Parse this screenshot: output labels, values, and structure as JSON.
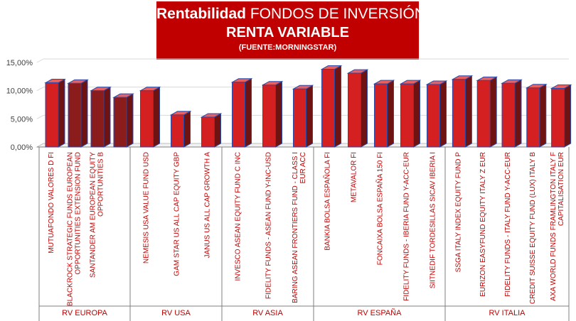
{
  "title": {
    "bold_part": "Rentabilidad",
    "rest": "FONDOS DE INVERSIÓN",
    "line2": "RENTA VARIABLE",
    "source": "(FUENTE:MORNINGSTAR)"
  },
  "chart_data": {
    "type": "bar",
    "ylim": [
      0,
      15
    ],
    "yticks": [
      "0,00%",
      "5,00%",
      "10,00%",
      "15,00%"
    ],
    "yticks_values": [
      0,
      5,
      10,
      15
    ],
    "colors": {
      "front": "#d42020",
      "dark": "#8b1c1c",
      "edge": "#2a4aa8"
    },
    "groups": [
      {
        "name": "RV EUROPA",
        "items": [
          {
            "label": [
              "MUTUAFONDO VALORES D FI"
            ],
            "value": 11.4,
            "shade": "front"
          },
          {
            "label": [
              "BLACKROCK STRATEGIC FUNDS EUROPEAN",
              "OPPORTUNITIES EXTENSION FUND"
            ],
            "value": 11.3,
            "shade": "dark"
          },
          {
            "label": [
              "SANTANDER AM EUROPEAN EQUITY",
              "OPPORTUNITIES B"
            ],
            "value": 10.0,
            "shade": "dark"
          },
          {
            "label": [],
            "value": 8.8,
            "shade": "dark"
          }
        ]
      },
      {
        "name": "RV USA",
        "items": [
          {
            "label": [
              "NEMESIS USA VALUE FUND USD"
            ],
            "value": 10.0,
            "shade": "front"
          },
          {
            "label": [
              "GAM STAR US ALL CAP EQUITY GBP"
            ],
            "value": 5.7,
            "shade": "front"
          },
          {
            "label": [
              "JANUS US ALL CAP GROWTH A"
            ],
            "value": 5.3,
            "shade": "front"
          }
        ]
      },
      {
        "name": "RV ASIA",
        "items": [
          {
            "label": [
              "INVESCO ASEAN EQUITY FUND C INC"
            ],
            "value": 11.5,
            "shade": "front"
          },
          {
            "label": [
              "FIDELITY FUNDS - ASEAN FUND Y-INC-USD"
            ],
            "value": 11.0,
            "shade": "front"
          },
          {
            "label": [
              "BARING ASEAN FRONTIERS FUND - CLASS I",
              "EUR ACC"
            ],
            "value": 10.3,
            "shade": "front"
          }
        ]
      },
      {
        "name": "RV ESPAÑA",
        "items": [
          {
            "label": [
              "BANKIA BOLSA ESPAÑOLA FI"
            ],
            "value": 13.8,
            "shade": "front"
          },
          {
            "label": [
              "METAVALOR FI"
            ],
            "value": 13.1,
            "shade": "front"
          },
          {
            "label": [
              "FONCAIXA BOLSA ESPAÑA 150 FI"
            ],
            "value": 11.2,
            "shade": "front"
          },
          {
            "label": [
              "FIDELITY FUNDS - IBERIA FUND Y-ACC-EUR"
            ],
            "value": 11.2,
            "shade": "front"
          },
          {
            "label": [
              "SIITNEDIF TORDESILLAS SICAV IBERIA I"
            ],
            "value": 11.1,
            "shade": "front"
          }
        ]
      },
      {
        "name": "RV ITALIA",
        "items": [
          {
            "label": [
              "SSGA ITALY INDEX EQUITY FUND P"
            ],
            "value": 12.0,
            "shade": "front"
          },
          {
            "label": [
              "EURIZON EASYFUND EQUITY ITALY Z EUR"
            ],
            "value": 11.8,
            "shade": "front"
          },
          {
            "label": [
              "FIDELITY FUNDS - ITALY FUND Y-ACC-EUR"
            ],
            "value": 11.3,
            "shade": "front"
          },
          {
            "label": [
              "CREDIT SUISSE EQUITY FUND (LUX) ITALY B"
            ],
            "value": 10.5,
            "shade": "front"
          },
          {
            "label": [
              "AXA WORLD FUNDS FRAMLINGTON ITALY F",
              "CAPITALISATION EUR"
            ],
            "value": 10.4,
            "shade": "front"
          }
        ]
      }
    ]
  }
}
